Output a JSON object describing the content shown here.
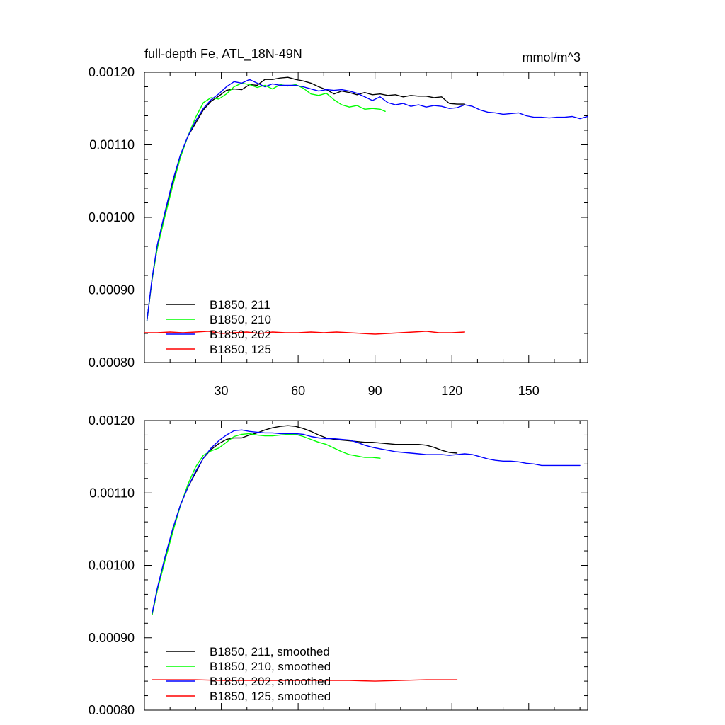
{
  "chart_data": [
    {
      "type": "line",
      "title": "full-depth Fe, ATL_18N-49N",
      "units": "mmol/m^3",
      "xlabel": "",
      "ylabel": "",
      "xlim": [
        0,
        173
      ],
      "ylim": [
        0.0008,
        0.0012
      ],
      "xticks": [
        30,
        60,
        90,
        120,
        150
      ],
      "xtick_labels": [
        "30",
        "60",
        "90",
        "120",
        "150"
      ],
      "yticks": [
        0.0008,
        0.0009,
        0.001,
        0.0011,
        0.0012
      ],
      "ytick_labels": [
        "0.00080",
        "0.00090",
        "0.00100",
        "0.00110",
        "0.00120"
      ],
      "grid": false,
      "legend_position": "bottom-left",
      "series": [
        {
          "name": "B1850, 211",
          "color": "#000000",
          "x": [
            1,
            3,
            5,
            8,
            11,
            14,
            17,
            20,
            23,
            26,
            29,
            32,
            35,
            38,
            41,
            44,
            47,
            50,
            53,
            56,
            59,
            62,
            65,
            68,
            71,
            74,
            77,
            80,
            83,
            86,
            89,
            92,
            95,
            98,
            101,
            104,
            107,
            110,
            113,
            116,
            119,
            122,
            125
          ],
          "y": [
            0.000858,
            0.000915,
            0.000958,
            0.001003,
            0.001047,
            0.001085,
            0.001112,
            0.00113,
            0.001148,
            0.00116,
            0.001167,
            0.001175,
            0.001177,
            0.001176,
            0.001183,
            0.001182,
            0.00119,
            0.00119,
            0.001192,
            0.001193,
            0.00119,
            0.001188,
            0.001185,
            0.00118,
            0.001176,
            0.00117,
            0.001174,
            0.001172,
            0.001169,
            0.001172,
            0.001169,
            0.00117,
            0.001168,
            0.001169,
            0.001166,
            0.001168,
            0.001167,
            0.001167,
            0.001165,
            0.001166,
            0.001157,
            0.001156,
            0.001156
          ]
        },
        {
          "name": "B1850, 210",
          "color": "#00ff00",
          "x": [
            1,
            3,
            5,
            8,
            11,
            14,
            17,
            20,
            23,
            26,
            29,
            32,
            35,
            38,
            41,
            44,
            47,
            50,
            53,
            56,
            59,
            62,
            65,
            68,
            71,
            74,
            77,
            80,
            83,
            86,
            89,
            92,
            94
          ],
          "y": [
            0.000858,
            0.000915,
            0.000957,
            0.001001,
            0.001043,
            0.001082,
            0.001112,
            0.001138,
            0.001158,
            0.001165,
            0.001163,
            0.00117,
            0.00118,
            0.001185,
            0.001183,
            0.001179,
            0.001182,
            0.001177,
            0.001183,
            0.001181,
            0.001183,
            0.001178,
            0.00117,
            0.001168,
            0.001171,
            0.001162,
            0.001155,
            0.001152,
            0.001154,
            0.001149,
            0.00115,
            0.001149,
            0.001146
          ]
        },
        {
          "name": "B1850, 202",
          "color": "#0000ff",
          "x": [
            1,
            3,
            5,
            8,
            11,
            14,
            17,
            20,
            23,
            26,
            29,
            32,
            35,
            38,
            41,
            44,
            47,
            50,
            53,
            56,
            59,
            62,
            65,
            68,
            71,
            74,
            77,
            80,
            83,
            86,
            89,
            92,
            95,
            98,
            101,
            104,
            107,
            110,
            113,
            116,
            119,
            122,
            125,
            128,
            131,
            134,
            137,
            140,
            143,
            146,
            149,
            152,
            155,
            158,
            161,
            164,
            167,
            170,
            173
          ],
          "y": [
            0.000858,
            0.000917,
            0.000962,
            0.001007,
            0.00105,
            0.001086,
            0.001112,
            0.001133,
            0.00115,
            0.001162,
            0.00117,
            0.00118,
            0.001187,
            0.001185,
            0.00119,
            0.001185,
            0.00118,
            0.001184,
            0.001182,
            0.001182,
            0.001182,
            0.00118,
            0.001177,
            0.001174,
            0.001176,
            0.001175,
            0.001176,
            0.001174,
            0.001171,
            0.001166,
            0.001161,
            0.001166,
            0.001158,
            0.001155,
            0.001157,
            0.001153,
            0.001155,
            0.001152,
            0.001154,
            0.001153,
            0.00115,
            0.001151,
            0.001155,
            0.001153,
            0.001148,
            0.001145,
            0.001144,
            0.001142,
            0.001143,
            0.001144,
            0.00114,
            0.001138,
            0.001138,
            0.001137,
            0.001138,
            0.001138,
            0.001139,
            0.001136,
            0.001139
          ]
        },
        {
          "name": "B1850, 125",
          "color": "#ff0000",
          "x": [
            0,
            5,
            10,
            15,
            20,
            25,
            30,
            35,
            40,
            45,
            50,
            55,
            60,
            65,
            70,
            75,
            80,
            85,
            90,
            95,
            100,
            105,
            110,
            115,
            120,
            125
          ],
          "y": [
            0.000841,
            0.000841,
            0.000842,
            0.000841,
            0.000842,
            0.000843,
            0.00084,
            0.000841,
            0.000842,
            0.00084,
            0.000842,
            0.000841,
            0.000841,
            0.000842,
            0.000841,
            0.000842,
            0.000841,
            0.00084,
            0.000839,
            0.00084,
            0.000841,
            0.000842,
            0.000843,
            0.000841,
            0.000841,
            0.000842
          ]
        }
      ]
    },
    {
      "type": "line",
      "title": "",
      "units": "",
      "xlabel": "",
      "ylabel": "",
      "xlim": [
        0,
        173
      ],
      "ylim": [
        0.0008,
        0.0012
      ],
      "xticks": [
        30,
        60,
        90,
        120,
        150
      ],
      "xtick_labels": [],
      "yticks": [
        0.0008,
        0.0009,
        0.001,
        0.0011,
        0.0012
      ],
      "ytick_labels": [
        "0.00080",
        "0.00090",
        "0.00100",
        "0.00110",
        "0.00120"
      ],
      "grid": false,
      "legend_position": "bottom-left",
      "series": [
        {
          "name": "B1850, 211, smoothed",
          "color": "#000000",
          "x": [
            3,
            5,
            8,
            11,
            14,
            17,
            20,
            23,
            26,
            29,
            32,
            35,
            38,
            41,
            44,
            47,
            50,
            53,
            56,
            59,
            62,
            65,
            68,
            71,
            74,
            77,
            80,
            83,
            86,
            89,
            92,
            95,
            98,
            101,
            104,
            107,
            110,
            113,
            116,
            119,
            122
          ],
          "y": [
            0.000932,
            0.000966,
            0.001008,
            0.001048,
            0.001083,
            0.001108,
            0.001128,
            0.001148,
            0.00116,
            0.001168,
            0.001174,
            0.001176,
            0.001176,
            0.00118,
            0.001183,
            0.001187,
            0.00119,
            0.001192,
            0.001193,
            0.001192,
            0.001189,
            0.001185,
            0.00118,
            0.001176,
            0.001174,
            0.001173,
            0.001172,
            0.001171,
            0.00117,
            0.00117,
            0.001169,
            0.001168,
            0.001167,
            0.001167,
            0.001167,
            0.001167,
            0.001166,
            0.001163,
            0.001159,
            0.001156,
            0.001155
          ]
        },
        {
          "name": "B1850, 210, smoothed",
          "color": "#00ff00",
          "x": [
            3,
            5,
            8,
            11,
            14,
            17,
            20,
            23,
            26,
            29,
            32,
            35,
            38,
            41,
            44,
            47,
            50,
            53,
            56,
            59,
            62,
            65,
            68,
            71,
            74,
            77,
            80,
            83,
            86,
            89,
            92
          ],
          "y": [
            0.000932,
            0.000965,
            0.001006,
            0.001045,
            0.001082,
            0.001112,
            0.001136,
            0.001152,
            0.001158,
            0.001162,
            0.00117,
            0.001178,
            0.001181,
            0.001182,
            0.00118,
            0.001179,
            0.001179,
            0.00118,
            0.001181,
            0.001181,
            0.001178,
            0.001174,
            0.00117,
            0.001167,
            0.001162,
            0.001157,
            0.001153,
            0.001151,
            0.001149,
            0.001149,
            0.001148
          ]
        },
        {
          "name": "B1850, 202, smoothed",
          "color": "#0000ff",
          "x": [
            3,
            5,
            8,
            11,
            14,
            17,
            20,
            23,
            26,
            29,
            32,
            35,
            38,
            41,
            44,
            47,
            50,
            53,
            56,
            59,
            62,
            65,
            68,
            71,
            74,
            77,
            80,
            83,
            86,
            89,
            92,
            95,
            98,
            101,
            104,
            107,
            110,
            113,
            116,
            119,
            122,
            125,
            128,
            131,
            134,
            137,
            140,
            143,
            146,
            149,
            152,
            155,
            158,
            161,
            164,
            167,
            170
          ],
          "y": [
            0.000934,
            0.000968,
            0.001011,
            0.00105,
            0.001083,
            0.001108,
            0.00113,
            0.001148,
            0.001162,
            0.001172,
            0.00118,
            0.001186,
            0.001187,
            0.001185,
            0.001184,
            0.001183,
            0.001183,
            0.001182,
            0.001182,
            0.001182,
            0.001181,
            0.001178,
            0.001176,
            0.001175,
            0.001175,
            0.001174,
            0.001173,
            0.00117,
            0.001166,
            0.001163,
            0.001161,
            0.001159,
            0.001157,
            0.001156,
            0.001155,
            0.001154,
            0.001153,
            0.001153,
            0.001153,
            0.001152,
            0.001153,
            0.001154,
            0.001153,
            0.00115,
            0.001147,
            0.001145,
            0.001144,
            0.001144,
            0.001143,
            0.001141,
            0.00114,
            0.001138,
            0.001138,
            0.001138,
            0.001138,
            0.001138,
            0.001138
          ]
        },
        {
          "name": "B1850, 125, smoothed",
          "color": "#ff0000",
          "x": [
            3,
            10,
            20,
            30,
            40,
            50,
            60,
            70,
            80,
            90,
            100,
            110,
            120,
            122
          ],
          "y": [
            0.000842,
            0.000842,
            0.000842,
            0.000841,
            0.000841,
            0.000841,
            0.000841,
            0.000841,
            0.000841,
            0.00084,
            0.000841,
            0.000842,
            0.000842,
            0.000842
          ]
        }
      ]
    }
  ]
}
